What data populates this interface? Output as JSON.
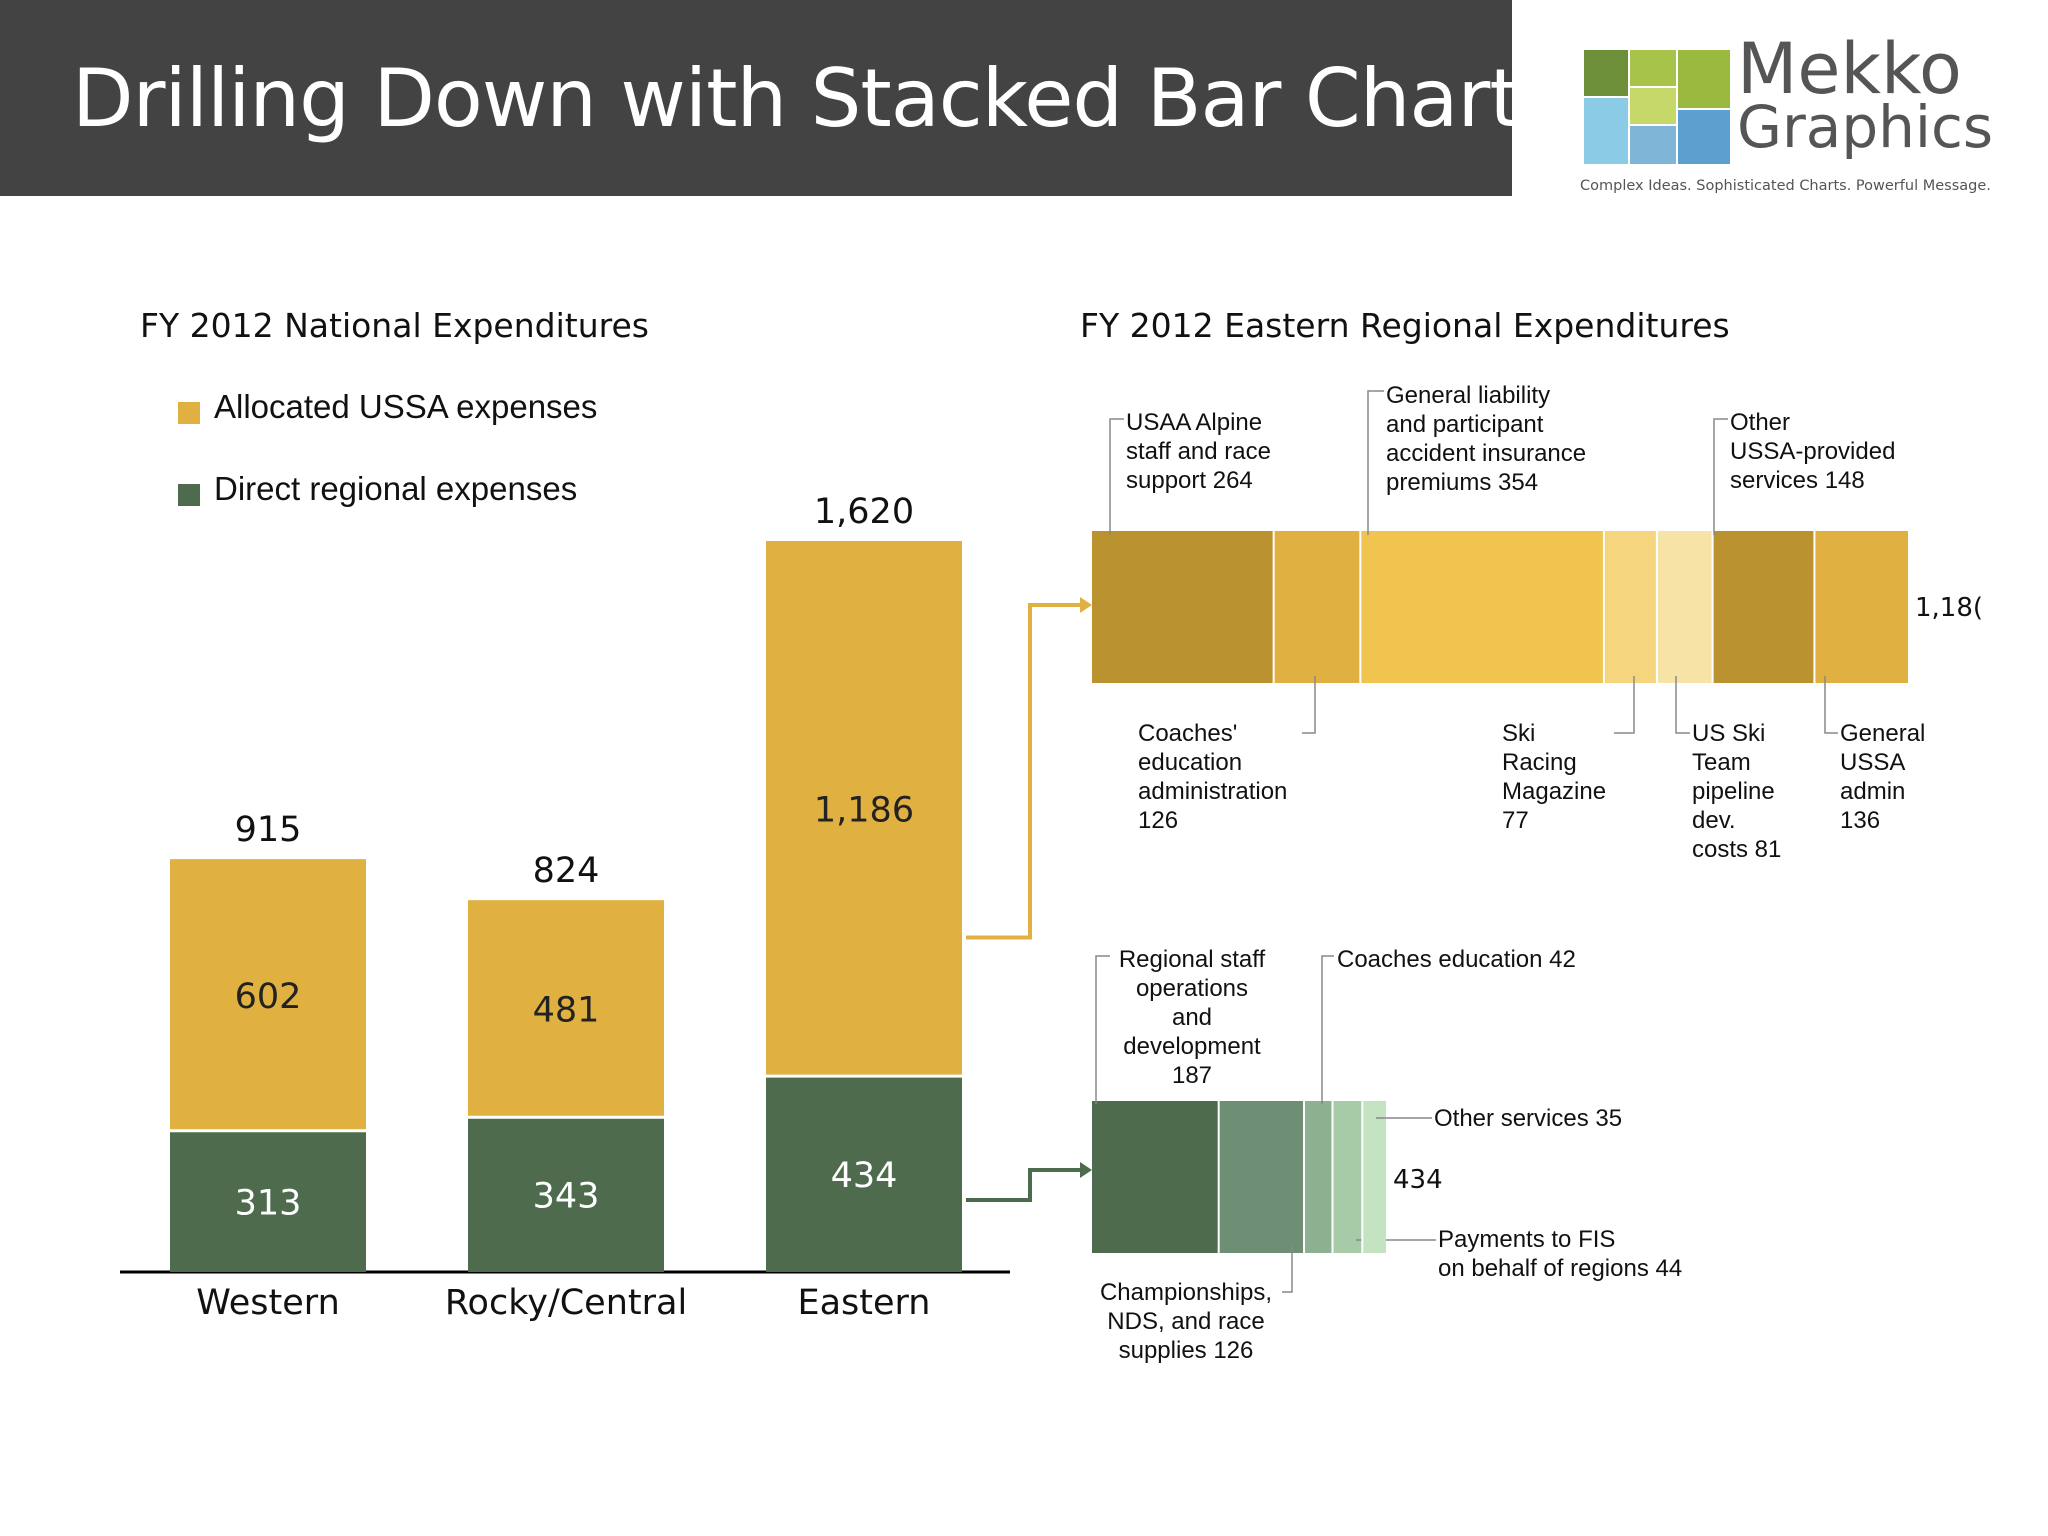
{
  "header": {
    "title": "Drilling Down with Stacked Bar Charts"
  },
  "logo": {
    "word1": "Mekko",
    "word2": "Graphics",
    "tagline": "Complex Ideas. Sophisticated Charts. Powerful Message."
  },
  "colors": {
    "allocated": "#E0B040",
    "direct": "#4E6B4E",
    "header_bg": "#434343"
  },
  "chart_data": [
    {
      "type": "bar",
      "stacked": true,
      "title": "FY 2012 National Expenditures",
      "categories": [
        "Western",
        "Rocky/Central",
        "Eastern"
      ],
      "series": [
        {
          "name": "Direct regional expenses",
          "values": [
            313,
            343,
            434
          ],
          "value_labels": [
            "313",
            "343",
            "434"
          ],
          "color": "#4E6B4E"
        },
        {
          "name": "Allocated USSA expenses",
          "values": [
            602,
            481,
            1186
          ],
          "value_labels": [
            "602",
            "481",
            "1,186"
          ],
          "color": "#E0B040"
        }
      ],
      "totals": [
        915,
        824,
        1620
      ],
      "total_labels": [
        "915",
        "824",
        "1,620"
      ],
      "legend": {
        "placement": "top-left",
        "items": [
          "Allocated USSA expenses",
          "Direct regional expenses"
        ]
      },
      "xlabel": "",
      "ylabel": ""
    },
    {
      "type": "bar",
      "stacked": true,
      "orientation": "horizontal",
      "title": "FY 2012 Eastern Regional Expenditures",
      "total": 1186,
      "total_label": "1,18(",
      "segments": [
        {
          "label": "USAA Alpine staff and race support 264",
          "value": 264,
          "color": "#BB9230",
          "label_side": "top"
        },
        {
          "label": "Coaches' education administration 126",
          "value": 126,
          "color": "#E0B040",
          "label_side": "bottom"
        },
        {
          "label": "General liability and participant accident insurance premiums 354",
          "value": 354,
          "color": "#F1C44F",
          "label_side": "top"
        },
        {
          "label": "Ski Racing Magazine 77",
          "value": 77,
          "color": "#F5D67E",
          "label_side": "bottom"
        },
        {
          "label": "US Ski Team pipeline dev. costs 81",
          "value": 81,
          "color": "#F8E3A7",
          "label_side": "bottom"
        },
        {
          "label": "Other USSA-provided services 148",
          "value": 148,
          "color": "#BB9230",
          "label_side": "top"
        },
        {
          "label": "General USSA admin 136",
          "value": 136,
          "color": "#E0B040",
          "label_side": "bottom"
        }
      ]
    },
    {
      "type": "bar",
      "stacked": true,
      "orientation": "horizontal",
      "title": "",
      "total": 434,
      "total_label": "434",
      "segments": [
        {
          "label": "Regional staff operations and development 187",
          "value": 187,
          "color": "#4E6B4E",
          "label_side": "top"
        },
        {
          "label": "Championships, NDS, and race supplies 126",
          "value": 126,
          "color": "#6F8F74",
          "label_side": "bottom"
        },
        {
          "label": "Coaches education 42",
          "value": 42,
          "color": "#8DB091",
          "label_side": "top"
        },
        {
          "label": "Payments to FIS on behalf of regions 44",
          "value": 44,
          "color": "#A6CBA6",
          "label_side": "right"
        },
        {
          "label": "Other services 35",
          "value": 35,
          "color": "#C3E3C1",
          "label_side": "right"
        }
      ]
    }
  ]
}
